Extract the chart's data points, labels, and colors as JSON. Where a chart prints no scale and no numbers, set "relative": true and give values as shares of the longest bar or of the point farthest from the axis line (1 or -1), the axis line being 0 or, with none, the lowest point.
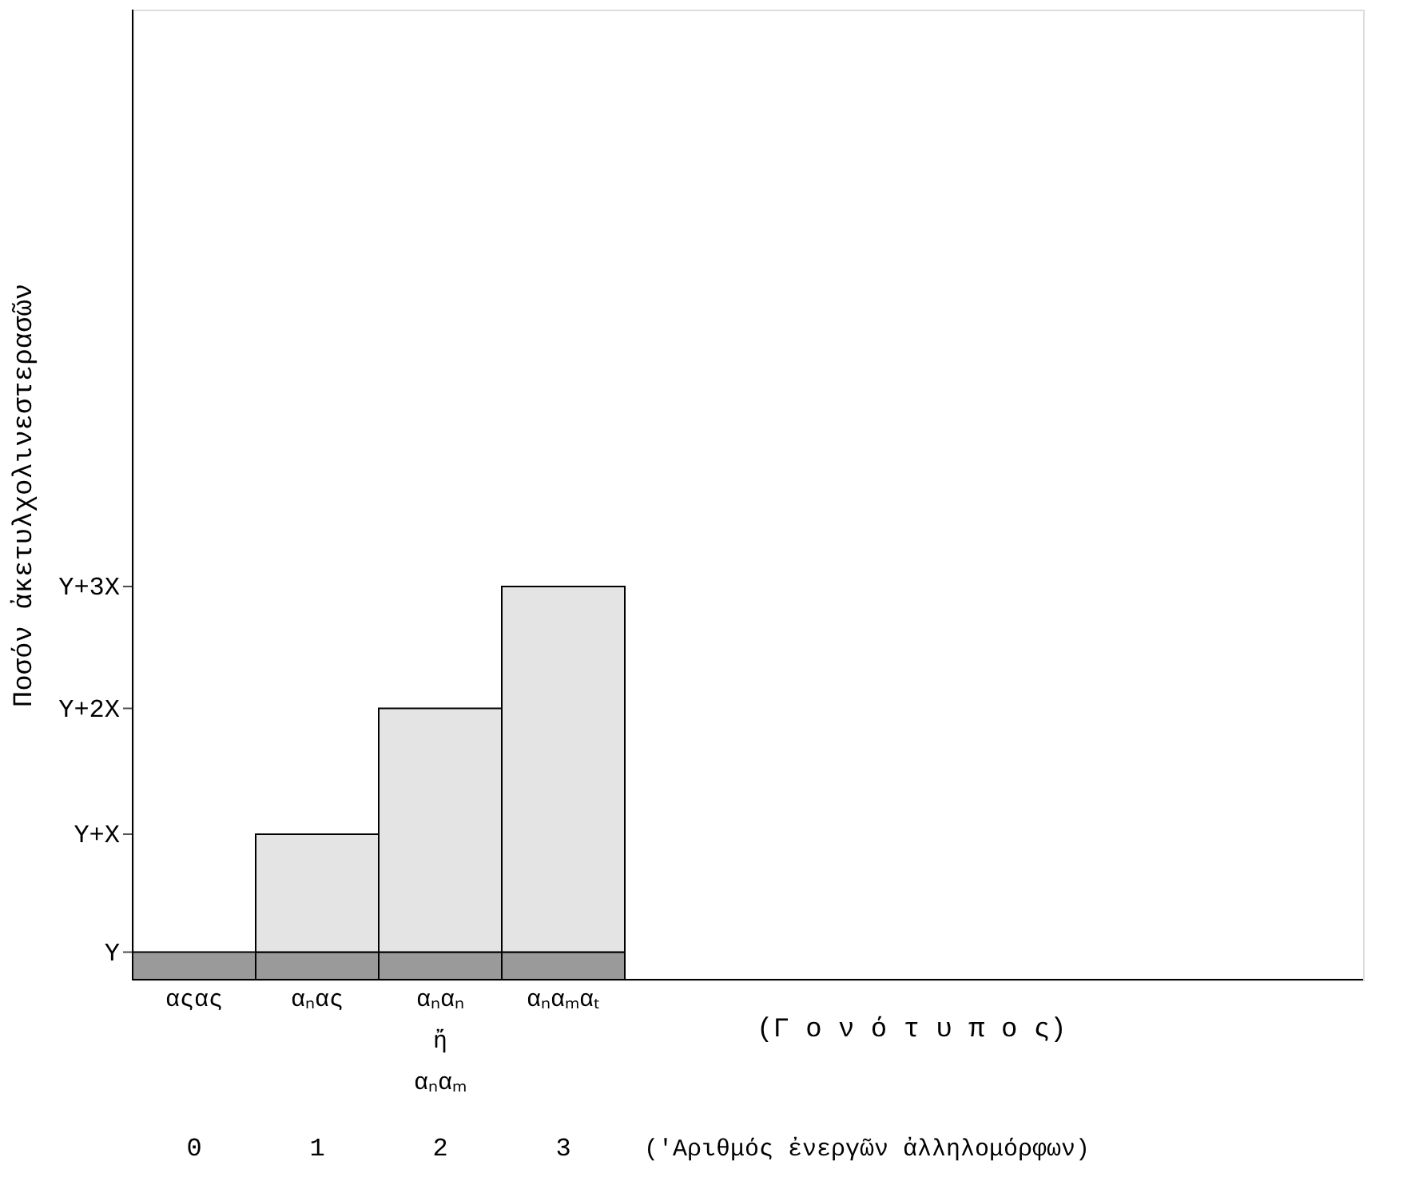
{
  "chart_data": {
    "type": "bar",
    "stacked": true,
    "relative": true,
    "ylabel": "Ποσόν ἀκετυλχολινεστερασῶν",
    "xlabel": "(Γ ο ν ό τ υ π ο ς)",
    "categories": [
      "αςας",
      "αₙας",
      "αₙαₙ ἤ αₙαₘ",
      "αₙαₘαₜ"
    ],
    "series": [
      {
        "color": "#9a9a9a",
        "values": [
          0.07,
          0.07,
          0.07,
          0.07
        ]
      },
      {
        "color": "#e4e4e4",
        "values": [
          null,
          0.3,
          0.62,
          0.93
        ]
      }
    ],
    "annotations": [
      "Y",
      "Y+X",
      "Y+2X",
      "Y+3X",
      "0",
      "1",
      "2",
      "3",
      "('Αριθμός ἐνεργῶν ἀλληλομόρφων)"
    ],
    "grid": false
  }
}
